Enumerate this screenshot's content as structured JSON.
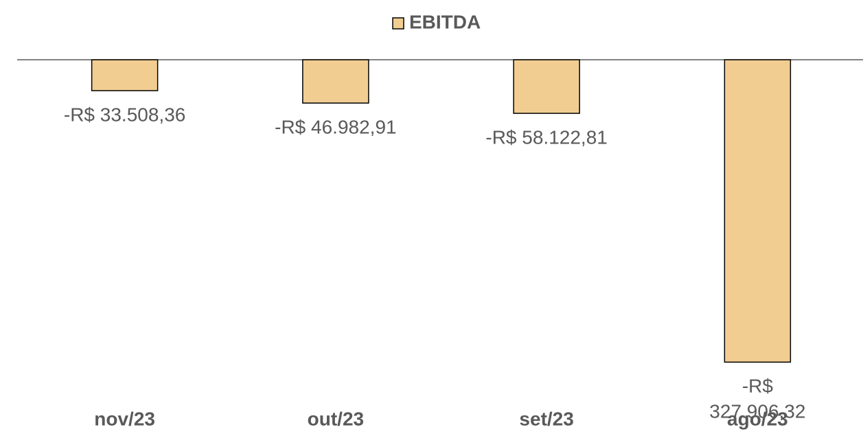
{
  "chart_data": {
    "type": "bar",
    "legend": "EBITDA",
    "categories": [
      "nov/23",
      "out/23",
      "set/23",
      "ago/23"
    ],
    "values": [
      -33508.36,
      -46982.91,
      -58122.81,
      -327906.32
    ],
    "value_labels": [
      "-R$ 33.508,36",
      "-R$ 46.982,91",
      "-R$ 58.122,81",
      "-R$ 327.906,32"
    ],
    "color": "#f2cd92",
    "ylim": [
      -350000,
      0
    ]
  }
}
